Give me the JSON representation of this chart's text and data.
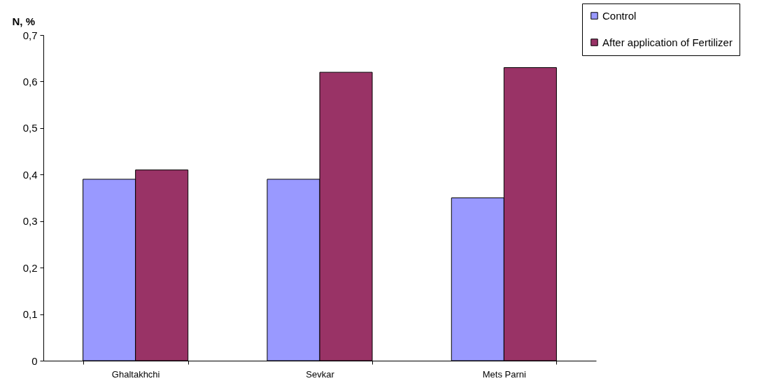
{
  "chart_data": {
    "type": "bar",
    "ylabel": "N, %",
    "categories": [
      "Ghaltakhchi",
      "Sevkar",
      "Mets Parni"
    ],
    "series": [
      {
        "name": "Control",
        "color": "#9999ff",
        "values": [
          0.39,
          0.39,
          0.35
        ]
      },
      {
        "name": "After application of Fertilizer",
        "color": "#993366",
        "values": [
          0.41,
          0.62,
          0.63
        ]
      }
    ],
    "ylim": [
      0,
      0.7
    ],
    "yticks": [
      0,
      {
        "value": 0.1,
        "label": "0,1"
      },
      {
        "value": 0.2,
        "label": "0,2"
      },
      {
        "value": 0.3,
        "label": "0,3"
      },
      {
        "value": 0.4,
        "label": "0,4"
      },
      {
        "value": 0.5,
        "label": "0,5"
      },
      {
        "value": 0.6,
        "label": "0,6"
      },
      {
        "value": 0.7,
        "label": "0,7"
      }
    ],
    "grid": false,
    "legend": "top right"
  }
}
